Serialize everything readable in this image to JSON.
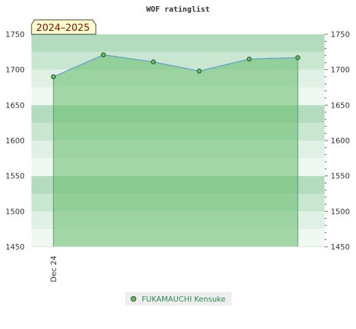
{
  "chart_data": {
    "type": "area",
    "title": "WOF ratinglist",
    "season_label": "2024–2025",
    "x": [
      "Dec 24",
      "",
      "",
      "",
      "",
      ""
    ],
    "series": [
      {
        "name": "FUKAMAUCHI Kensuke",
        "values": [
          1690,
          1721,
          1711,
          1698,
          1715,
          1717
        ]
      }
    ],
    "ylim": [
      1450,
      1750
    ],
    "yticks": [
      1450,
      1500,
      1550,
      1600,
      1650,
      1700,
      1750
    ],
    "xlabel": "",
    "ylabel": "",
    "grid": true,
    "legend_position": "bottom",
    "colors": {
      "line": "#5b9bd5",
      "fill": "#66bb6a",
      "marker": "#66bb6a",
      "badge_bg": "#ffffcc"
    }
  }
}
